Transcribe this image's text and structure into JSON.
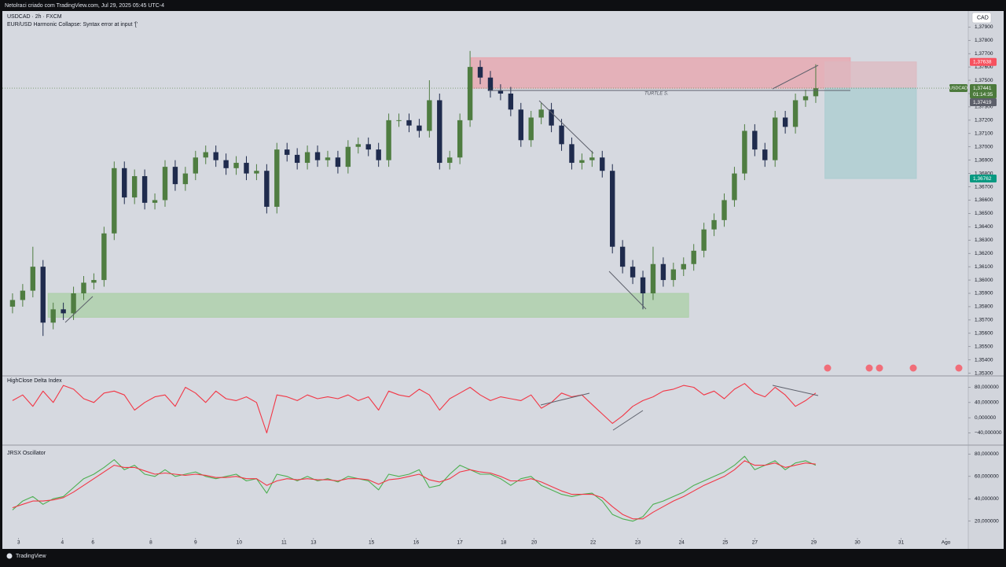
{
  "header": "Netolraci criado com TradingView.com, Jul 29, 2025 05:45 UTC-4",
  "footer": "TradingView",
  "currency": "CAD",
  "chart_data": [
    {
      "type": "candlestick",
      "title": "USDCAD · 2h · FXCM",
      "subtitle": "EUR/USD Harmonic Collapse: Syntax error at input '['",
      "annotation": "TURTLE S.",
      "up_color": "#4f7d41",
      "down_color": "#1f2b4d",
      "xlim": [
        -1,
        94
      ],
      "ylim": [
        1.3528,
        1.3802
      ],
      "yticks": [
        {
          "value": 1.379,
          "label": "1,37900"
        },
        {
          "value": 1.378,
          "label": "1,37800"
        },
        {
          "value": 1.377,
          "label": "1,37700"
        },
        {
          "value": 1.376,
          "label": "1,37600"
        },
        {
          "value": 1.375,
          "label": "1,37500"
        },
        {
          "value": 1.374,
          "label": "1,37400"
        },
        {
          "value": 1.373,
          "label": "1,37300"
        },
        {
          "value": 1.372,
          "label": "1,37200"
        },
        {
          "value": 1.371,
          "label": "1,37100"
        },
        {
          "value": 1.37,
          "label": "1,37000"
        },
        {
          "value": 1.369,
          "label": "1,36900"
        },
        {
          "value": 1.368,
          "label": "1,36800"
        },
        {
          "value": 1.367,
          "label": "1,36700"
        },
        {
          "value": 1.366,
          "label": "1,36600"
        },
        {
          "value": 1.365,
          "label": "1,36500"
        },
        {
          "value": 1.364,
          "label": "1,36400"
        },
        {
          "value": 1.363,
          "label": "1,36300"
        },
        {
          "value": 1.362,
          "label": "1,36200"
        },
        {
          "value": 1.361,
          "label": "1,36100"
        },
        {
          "value": 1.36,
          "label": "1,36000"
        },
        {
          "value": 1.359,
          "label": "1,35900"
        },
        {
          "value": 1.358,
          "label": "1,35800"
        },
        {
          "value": 1.357,
          "label": "1,35700"
        },
        {
          "value": 1.356,
          "label": "1,35600"
        },
        {
          "value": 1.355,
          "label": "1,35500"
        },
        {
          "value": 1.354,
          "label": "1,35400"
        },
        {
          "value": 1.353,
          "label": "1,35300"
        }
      ],
      "open": [
        1.358,
        1.3585,
        1.3592,
        1.361,
        1.3568,
        1.3578,
        1.3575,
        1.359,
        1.3598,
        1.36,
        1.3635,
        1.3684,
        1.3662,
        1.3678,
        1.3658,
        1.366,
        1.3685,
        1.3672,
        1.368,
        1.3692,
        1.3696,
        1.369,
        1.3684,
        1.3688,
        1.368,
        1.3682,
        1.3655,
        1.3698,
        1.3694,
        1.3688,
        1.3696,
        1.369,
        1.3692,
        1.3685,
        1.37,
        1.3702,
        1.3698,
        1.369,
        1.372,
        1.372,
        1.3716,
        1.3712,
        1.3735,
        1.3688,
        1.3692,
        1.372,
        1.376,
        1.3752,
        1.3742,
        1.374,
        1.3728,
        1.3705,
        1.3722,
        1.3728,
        1.3716,
        1.3702,
        1.3688,
        1.369,
        1.3692,
        1.3682,
        1.3625,
        1.361,
        1.3602,
        1.359,
        1.3612,
        1.36,
        1.3608,
        1.3612,
        1.3622,
        1.3638,
        1.3645,
        1.366,
        1.368,
        1.3712,
        1.3698,
        1.369,
        1.3722,
        1.3715,
        1.3735,
        1.3738
      ],
      "high": [
        1.359,
        1.3597,
        1.3625,
        1.3615,
        1.3583,
        1.3583,
        1.3595,
        1.3603,
        1.3605,
        1.364,
        1.3689,
        1.3689,
        1.3683,
        1.3683,
        1.3665,
        1.369,
        1.369,
        1.3685,
        1.3697,
        1.3701,
        1.3701,
        1.3695,
        1.3693,
        1.3693,
        1.3687,
        1.3687,
        1.3703,
        1.3703,
        1.3699,
        1.3701,
        1.3701,
        1.3697,
        1.3697,
        1.3705,
        1.3707,
        1.3707,
        1.3703,
        1.3725,
        1.3725,
        1.3725,
        1.3721,
        1.375,
        1.374,
        1.3697,
        1.3725,
        1.3772,
        1.3765,
        1.3757,
        1.3747,
        1.3745,
        1.3733,
        1.3727,
        1.3733,
        1.3733,
        1.3721,
        1.3707,
        1.3695,
        1.3697,
        1.3697,
        1.3687,
        1.363,
        1.3615,
        1.3607,
        1.3625,
        1.3617,
        1.3613,
        1.3617,
        1.3627,
        1.3643,
        1.365,
        1.3665,
        1.3685,
        1.3717,
        1.3717,
        1.3703,
        1.3727,
        1.3727,
        1.374,
        1.3743,
        1.3762
      ],
      "low": [
        1.3575,
        1.358,
        1.3587,
        1.3558,
        1.3563,
        1.357,
        1.357,
        1.3585,
        1.3593,
        1.3595,
        1.363,
        1.3657,
        1.3657,
        1.3653,
        1.3653,
        1.3655,
        1.3667,
        1.3667,
        1.3675,
        1.3687,
        1.3685,
        1.3679,
        1.3679,
        1.3675,
        1.3675,
        1.365,
        1.365,
        1.3689,
        1.3683,
        1.3683,
        1.3685,
        1.3685,
        1.368,
        1.368,
        1.3695,
        1.3693,
        1.3685,
        1.3685,
        1.3715,
        1.3711,
        1.3707,
        1.3707,
        1.3683,
        1.3683,
        1.3687,
        1.3715,
        1.3747,
        1.3737,
        1.3735,
        1.3723,
        1.37,
        1.37,
        1.3717,
        1.3711,
        1.3697,
        1.3683,
        1.3683,
        1.3685,
        1.3677,
        1.362,
        1.3605,
        1.3597,
        1.3578,
        1.3585,
        1.3595,
        1.3595,
        1.3603,
        1.3607,
        1.3617,
        1.3633,
        1.364,
        1.3655,
        1.3675,
        1.3693,
        1.3685,
        1.3685,
        1.371,
        1.371,
        1.373,
        1.3733
      ],
      "close": [
        1.3585,
        1.3592,
        1.361,
        1.3568,
        1.3578,
        1.3575,
        1.359,
        1.3598,
        1.36,
        1.3635,
        1.3684,
        1.3662,
        1.3678,
        1.3658,
        1.366,
        1.3685,
        1.3672,
        1.368,
        1.3692,
        1.3696,
        1.369,
        1.3684,
        1.3688,
        1.368,
        1.3682,
        1.3655,
        1.3698,
        1.3694,
        1.3688,
        1.3696,
        1.369,
        1.3692,
        1.3685,
        1.37,
        1.3702,
        1.3698,
        1.369,
        1.372,
        1.372,
        1.3716,
        1.3712,
        1.3735,
        1.3688,
        1.3692,
        1.372,
        1.376,
        1.3752,
        1.3742,
        1.374,
        1.3728,
        1.3705,
        1.3722,
        1.3728,
        1.3716,
        1.3702,
        1.3688,
        1.369,
        1.3692,
        1.3682,
        1.3625,
        1.361,
        1.3602,
        1.359,
        1.3612,
        1.36,
        1.3608,
        1.3612,
        1.3622,
        1.3638,
        1.3645,
        1.366,
        1.368,
        1.3712,
        1.3698,
        1.369,
        1.3722,
        1.3715,
        1.3735,
        1.3738,
        1.3744
      ],
      "zones": [
        {
          "top": 1.3767,
          "bottom": 1.3744,
          "x0": 45.1,
          "x1": 82.4,
          "color": "#e8a3ac"
        },
        {
          "top": 1.359,
          "bottom": 1.3572,
          "x0": 3.5,
          "x1": 66.5,
          "color": "#a9cfa5"
        },
        {
          "top": 1.37638,
          "bottom": 1.37441,
          "x0": 79.9,
          "x1": 88.9,
          "color": "#ddb8c0"
        },
        {
          "top": 1.37441,
          "bottom": 1.36762,
          "x0": 79.9,
          "x1": 88.9,
          "color": "#a9ccd0"
        }
      ],
      "price_tags": [
        {
          "value": 1.37638,
          "label": "1,37638",
          "color": "#f7525f"
        },
        {
          "value": 1.37441,
          "label": "1,37441",
          "color": "#4c7a3c",
          "symbol": "USDCAD",
          "countdown": "01:14:35"
        },
        {
          "value": 1.37419,
          "label": "1,37419",
          "color": "#5d606b"
        },
        {
          "value": 1.36762,
          "label": "1,36762",
          "color": "#089981"
        }
      ]
    },
    {
      "type": "line",
      "title": "HighClose Delta Index",
      "xlim": [
        -1,
        94
      ],
      "ylim": [
        -72,
        110
      ],
      "yticks": [
        {
          "value": 80,
          "label": "80,000000"
        },
        {
          "value": 40,
          "label": "40,000000"
        },
        {
          "value": 0,
          "label": "0,000000"
        },
        {
          "value": -40,
          "label": "−40,000000"
        }
      ],
      "series": [
        {
          "color": "#f23645",
          "values": [
            45,
            60,
            30,
            70,
            40,
            85,
            75,
            50,
            40,
            65,
            70,
            60,
            20,
            40,
            55,
            60,
            30,
            80,
            65,
            40,
            70,
            50,
            45,
            55,
            40,
            -40,
            60,
            55,
            45,
            60,
            50,
            55,
            50,
            60,
            45,
            55,
            20,
            70,
            60,
            55,
            75,
            60,
            20,
            50,
            65,
            80,
            60,
            45,
            55,
            50,
            45,
            60,
            25,
            40,
            65,
            55,
            60,
            35,
            10,
            -15,
            5,
            30,
            45,
            55,
            70,
            75,
            85,
            80,
            60,
            70,
            50,
            75,
            90,
            65,
            55,
            80,
            60,
            30,
            45,
            65
          ]
        }
      ]
    },
    {
      "type": "line",
      "title": "JRSX Oscillator",
      "xlim": [
        -1,
        94
      ],
      "ylim": [
        5,
        88
      ],
      "yticks": [
        {
          "value": 80,
          "label": "80,000000"
        },
        {
          "value": 60,
          "label": "60,000000"
        },
        {
          "value": 40,
          "label": "40,000000"
        },
        {
          "value": 20,
          "label": "20,000000"
        }
      ],
      "xticks": [
        {
          "value": 0.6,
          "label": "3"
        },
        {
          "value": 4.9,
          "label": "4"
        },
        {
          "value": 7.9,
          "label": "6"
        },
        {
          "value": 13.6,
          "label": "8"
        },
        {
          "value": 18.0,
          "label": "9"
        },
        {
          "value": 22.3,
          "label": "10"
        },
        {
          "value": 26.7,
          "label": "11"
        },
        {
          "value": 29.6,
          "label": "13"
        },
        {
          "value": 35.3,
          "label": "15"
        },
        {
          "value": 39.7,
          "label": "16"
        },
        {
          "value": 44.0,
          "label": "17"
        },
        {
          "value": 48.3,
          "label": "18"
        },
        {
          "value": 51.3,
          "label": "20"
        },
        {
          "value": 57.1,
          "label": "22"
        },
        {
          "value": 61.5,
          "label": "23"
        },
        {
          "value": 65.8,
          "label": "24"
        },
        {
          "value": 70.1,
          "label": "25"
        },
        {
          "value": 73.0,
          "label": "27"
        },
        {
          "value": 78.8,
          "label": "29"
        },
        {
          "value": 83.1,
          "label": "30"
        },
        {
          "value": 87.4,
          "label": "31"
        },
        {
          "value": 91.8,
          "label": "Ago"
        }
      ],
      "series": [
        {
          "color": "#4caf50",
          "values": [
            30,
            38,
            42,
            35,
            40,
            42,
            50,
            58,
            62,
            68,
            75,
            66,
            70,
            62,
            60,
            66,
            60,
            62,
            64,
            60,
            58,
            60,
            62,
            56,
            58,
            45,
            62,
            60,
            56,
            60,
            56,
            58,
            55,
            60,
            58,
            56,
            48,
            62,
            60,
            62,
            66,
            50,
            52,
            62,
            70,
            66,
            62,
            62,
            58,
            52,
            58,
            60,
            52,
            48,
            44,
            42,
            44,
            45,
            38,
            26,
            22,
            20,
            24,
            35,
            38,
            42,
            46,
            52,
            56,
            60,
            64,
            70,
            78,
            66,
            70,
            74,
            66,
            72,
            74,
            70
          ]
        },
        {
          "color": "#f23645",
          "values": [
            32,
            35,
            38,
            38,
            39,
            41,
            46,
            52,
            58,
            64,
            70,
            68,
            68,
            65,
            62,
            63,
            62,
            61,
            62,
            61,
            59,
            59,
            60,
            58,
            58,
            52,
            56,
            58,
            57,
            58,
            57,
            57,
            56,
            58,
            58,
            57,
            53,
            57,
            58,
            60,
            62,
            57,
            55,
            58,
            64,
            66,
            64,
            63,
            60,
            56,
            56,
            58,
            55,
            51,
            47,
            44,
            44,
            44,
            41,
            33,
            26,
            22,
            22,
            28,
            33,
            38,
            42,
            47,
            52,
            56,
            60,
            66,
            74,
            70,
            70,
            72,
            68,
            70,
            72,
            71
          ]
        }
      ]
    }
  ]
}
